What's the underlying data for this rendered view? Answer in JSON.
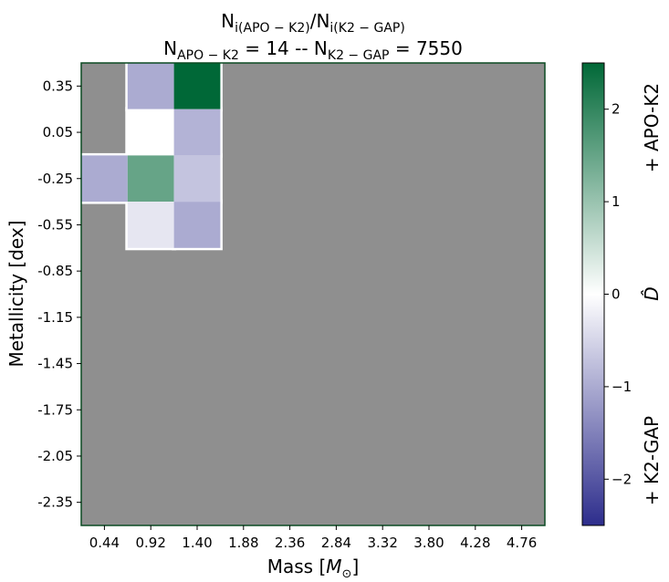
{
  "chart_data": {
    "type": "heatmap",
    "title": {
      "line1": {
        "parts": [
          {
            "t": "N",
            "sub": false
          },
          {
            "t": "i(APO − K2)",
            "sub": true
          },
          {
            "t": "/N",
            "sub": false
          },
          {
            "t": "i(K2 − GAP)",
            "sub": true
          }
        ]
      },
      "line2": {
        "parts": [
          {
            "t": "N",
            "sub": false
          },
          {
            "t": "APO − K2",
            "sub": true
          },
          {
            "t": " = 14 -- N",
            "sub": false
          },
          {
            "t": "K2 − GAP",
            "sub": true
          },
          {
            "t": " = 7550",
            "sub": false
          }
        ]
      }
    },
    "xlabel": {
      "text": "Mass [",
      "symbol": "M",
      "sub": "⊙",
      "suffix": "]"
    },
    "ylabel": "Metallicity [dex]",
    "x_ticks": [
      "0.44",
      "0.92",
      "1.40",
      "1.88",
      "2.36",
      "2.84",
      "3.32",
      "3.80",
      "4.28",
      "4.76"
    ],
    "y_ticks": [
      "0.35",
      "0.05",
      "-0.25",
      "-0.55",
      "-0.85",
      "-1.15",
      "-1.45",
      "-1.75",
      "-2.05",
      "-2.35"
    ],
    "background_color": "#8f8f8f",
    "colormap": {
      "name": "diverging blue-white-green",
      "low_color": "#2d2d8c",
      "mid_color": "#ffffff",
      "high_color": "#006837",
      "vmin": -2.5,
      "vmax": 2.5
    },
    "colorbar": {
      "ticks": [
        "2",
        "1",
        "0",
        "−1",
        "−2"
      ],
      "label": "D̂",
      "label_top": "+ APO-K2",
      "label_bottom": "+ K2-GAP"
    },
    "cells": [
      {
        "mass": "0.92",
        "feh": "0.35",
        "value": -1.0
      },
      {
        "mass": "1.40",
        "feh": "0.35",
        "value": 2.5
      },
      {
        "mass": "0.92",
        "feh": "0.05",
        "value": 0.0
      },
      {
        "mass": "1.40",
        "feh": "0.05",
        "value": -0.9
      },
      {
        "mass": "0.44",
        "feh": "-0.25",
        "value": -1.0
      },
      {
        "mass": "0.92",
        "feh": "-0.25",
        "value": 1.5
      },
      {
        "mass": "1.40",
        "feh": "-0.25",
        "value": -0.7
      },
      {
        "mass": "0.92",
        "feh": "-0.55",
        "value": -0.3
      },
      {
        "mass": "1.40",
        "feh": "-0.55",
        "value": -1.0
      }
    ]
  }
}
